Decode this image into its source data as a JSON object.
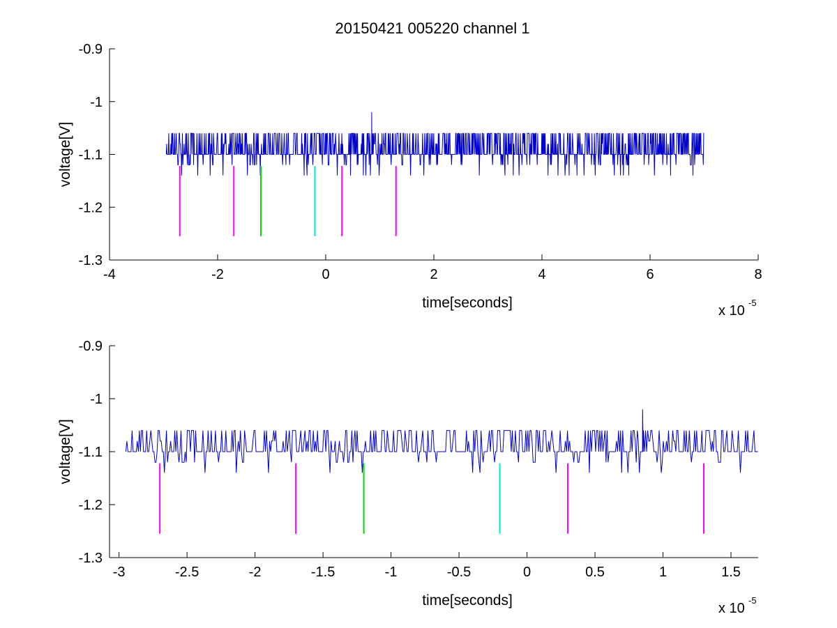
{
  "figure_title": "20150421 005220 channel 1",
  "colors": {
    "trace": "#0000cc",
    "marker_magenta": "#ff00ff",
    "marker_green": "#00dd00",
    "marker_cyan": "#00e5ee",
    "axis": "#000000"
  },
  "chart_data": [
    {
      "type": "line",
      "title": "20150421 005220 channel 1",
      "xlabel": "time[seconds]",
      "ylabel": "voltage[V]",
      "x_exponent_label": "x 10",
      "x_exponent": "-5",
      "xlim": [
        -4,
        8
      ],
      "ylim": [
        -1.3,
        -0.9
      ],
      "x_scale_note": "x values in units of 1e-5 seconds",
      "xticks": [
        -4,
        -2,
        0,
        2,
        4,
        6,
        8
      ],
      "xtick_labels": [
        "-4",
        "-2",
        "0",
        "2",
        "4",
        "6",
        "8"
      ],
      "yticks": [
        -1.3,
        -1.2,
        -1.1,
        -1,
        -0.9
      ],
      "ytick_labels": [
        "-1.3",
        "-1.2",
        "-1.1",
        "-1",
        "-0.9"
      ],
      "grid": false,
      "series": [
        {
          "kind": "noisy-step-trace",
          "x_range": [
            -2.95,
            7.0
          ],
          "baseline": -1.1,
          "levels": [
            -1.14,
            -1.12,
            -1.1,
            -1.08,
            -1.06
          ],
          "spike": {
            "x": 0.85,
            "y": -1.02
          }
        }
      ],
      "markers": [
        {
          "x": -2.7,
          "y_from": -1.255,
          "y_to": -1.122,
          "color": "magenta"
        },
        {
          "x": -1.7,
          "y_from": -1.255,
          "y_to": -1.122,
          "color": "magenta"
        },
        {
          "x": -1.2,
          "y_from": -1.255,
          "y_to": -1.122,
          "color": "green"
        },
        {
          "x": -0.2,
          "y_from": -1.255,
          "y_to": -1.122,
          "color": "cyan"
        },
        {
          "x": 0.3,
          "y_from": -1.255,
          "y_to": -1.122,
          "color": "magenta"
        },
        {
          "x": 1.3,
          "y_from": -1.255,
          "y_to": -1.122,
          "color": "magenta"
        }
      ]
    },
    {
      "type": "line",
      "title": "",
      "xlabel": "time[seconds]",
      "ylabel": "voltage[V]",
      "x_exponent_label": "x 10",
      "x_exponent": "-5",
      "xlim": [
        -3.07,
        1.7
      ],
      "ylim": [
        -1.3,
        -0.9
      ],
      "x_scale_note": "x values in units of 1e-5 seconds",
      "xticks": [
        -3,
        -2.5,
        -2,
        -1.5,
        -1,
        -0.5,
        0,
        0.5,
        1,
        1.5
      ],
      "xtick_labels": [
        "-3",
        "-2.5",
        "-2",
        "-1.5",
        "-1",
        "-0.5",
        "0",
        "0.5",
        "1",
        "1.5"
      ],
      "yticks": [
        -1.3,
        -1.2,
        -1.1,
        -1,
        -0.9
      ],
      "ytick_labels": [
        "-1.3",
        "-1.2",
        "-1.1",
        "-1",
        "-0.9"
      ],
      "grid": false,
      "series": [
        {
          "kind": "noisy-step-trace",
          "x_range": [
            -2.95,
            1.7
          ],
          "baseline": -1.1,
          "levels": [
            -1.14,
            -1.12,
            -1.1,
            -1.08,
            -1.06
          ],
          "spike": {
            "x": 0.85,
            "y": -1.02
          }
        }
      ],
      "markers": [
        {
          "x": -2.7,
          "y_from": -1.255,
          "y_to": -1.122,
          "color": "magenta"
        },
        {
          "x": -1.7,
          "y_from": -1.255,
          "y_to": -1.122,
          "color": "magenta"
        },
        {
          "x": -1.2,
          "y_from": -1.255,
          "y_to": -1.122,
          "color": "green"
        },
        {
          "x": -0.2,
          "y_from": -1.255,
          "y_to": -1.122,
          "color": "cyan"
        },
        {
          "x": 0.3,
          "y_from": -1.255,
          "y_to": -1.122,
          "color": "magenta"
        },
        {
          "x": 1.3,
          "y_from": -1.255,
          "y_to": -1.122,
          "color": "magenta"
        }
      ]
    }
  ]
}
